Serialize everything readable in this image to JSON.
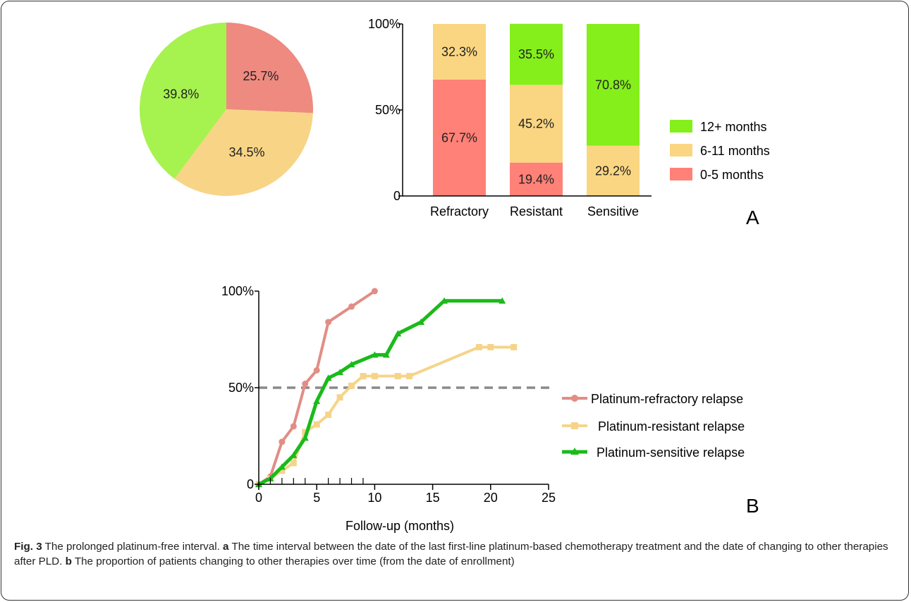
{
  "chart_data": [
    {
      "type": "pie",
      "values": [
        25.7,
        34.5,
        39.8
      ],
      "labels": [
        "25.7%",
        "34.5%",
        "39.8%"
      ],
      "colors": [
        "#ee8a80",
        "#f8d486",
        "#a6f24f"
      ]
    },
    {
      "type": "bar",
      "stacked": true,
      "categories": [
        "Refractory",
        "Resistant",
        "Sensitive"
      ],
      "yticks": [
        "0",
        "50%",
        "100%"
      ],
      "ylim": [
        0,
        100
      ],
      "series": [
        {
          "name": "0-5   months",
          "color": "#ff8177",
          "values": [
            67.7,
            19.4,
            0
          ],
          "labels": [
            "67.7%",
            "19.4%",
            ""
          ]
        },
        {
          "name": "6-11 months",
          "color": "#fad682",
          "values": [
            32.3,
            45.2,
            29.2
          ],
          "labels": [
            "32.3%",
            "45.2%",
            "29.2%"
          ]
        },
        {
          "name": "12+  months",
          "color": "#84ef1a",
          "values": [
            0,
            35.5,
            70.8
          ],
          "labels": [
            "",
            "35.5%",
            "70.8%"
          ]
        }
      ],
      "legend_order": [
        2,
        1,
        0
      ],
      "legend_position": "right",
      "panel_label": "A"
    },
    {
      "type": "line",
      "xlabel": "Follow-up (months)",
      "xlim": [
        0,
        25
      ],
      "ylim": [
        0,
        100
      ],
      "xticks": [
        "0",
        "5",
        "10",
        "15",
        "20",
        "25"
      ],
      "yticks": [
        "0",
        "50%",
        "100%"
      ],
      "reference_line": 50,
      "series": [
        {
          "name": "Platinum-refractory relapse",
          "color": "#e28d85",
          "marker": "circle",
          "x": [
            0,
            1,
            2,
            3,
            4,
            5,
            6,
            8,
            10
          ],
          "y": [
            0,
            4,
            22,
            30,
            52,
            59,
            84,
            92,
            100
          ]
        },
        {
          "name": "Platinum-resistant relapse",
          "color": "#f5d48a",
          "marker": "square",
          "x": [
            0,
            1,
            2,
            3,
            4,
            5,
            6,
            7,
            8,
            9,
            10,
            12,
            13,
            19,
            20,
            22
          ],
          "y": [
            0,
            3,
            7,
            11,
            27,
            31,
            36,
            45,
            51,
            56,
            56,
            56,
            56,
            71,
            71,
            71
          ]
        },
        {
          "name": "Platinum-sensitive relapse",
          "color": "#1aba1a",
          "marker": "triangle",
          "x": [
            0,
            1,
            2,
            3,
            4,
            5,
            6,
            7,
            8,
            10,
            11,
            12,
            14,
            16,
            21
          ],
          "y": [
            0,
            3,
            9,
            15,
            24,
            43,
            55,
            58,
            62,
            67,
            67,
            78,
            84,
            95,
            95
          ]
        }
      ],
      "legend_position": "right",
      "panel_label": "B"
    }
  ],
  "caption": {
    "fig_label": "Fig. 3",
    "title": " The prolonged platinum-free interval. ",
    "a_label": "a",
    "a_text": " The time interval between the date of the last first-line platinum-based chemotherapy treatment and the date of changing to other therapies after PLD. ",
    "b_label": "b",
    "b_text": " The proportion of patients changing to other therapies over time (from the date of enrollment)"
  }
}
